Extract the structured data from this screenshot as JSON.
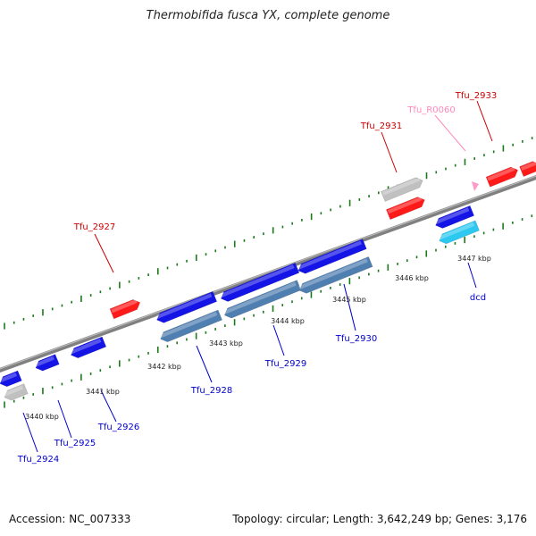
{
  "header": {
    "title": "Thermobifida fusca YX, complete genome"
  },
  "footer": {
    "accession": "Accession: NC_007333",
    "summary": "Topology: circular; Length: 3,642,249 bp; Genes: 3,176"
  },
  "colors": {
    "forward_cds": "#ff1a1a",
    "reverse_cds": "#1414e6",
    "forward_other": "#c0c0c0",
    "reverse_other": "#c0c0c0",
    "reverse_steel": "#4f7fb0",
    "reverse_cyan": "#2cc8f0",
    "rna": "#ff99cc",
    "backbone": "#808080",
    "ticks": "#1a7a1a",
    "label_forward": "#cc0000",
    "label_reverse": "#0000cc",
    "label_rna": "#ff88bb"
  },
  "kbp_labels": [
    "3440 kbp",
    "3441 kbp",
    "3442 kbp",
    "3443 kbp",
    "3444 kbp",
    "3445 kbp",
    "3446 kbp",
    "3447 kbp"
  ],
  "gene_labels": [
    {
      "text": "Tfu_2924",
      "strand": "reverse"
    },
    {
      "text": "Tfu_2925",
      "strand": "reverse"
    },
    {
      "text": "Tfu_2926",
      "strand": "reverse"
    },
    {
      "text": "Tfu_2927",
      "strand": "forward"
    },
    {
      "text": "Tfu_2928",
      "strand": "reverse"
    },
    {
      "text": "Tfu_2929",
      "strand": "reverse"
    },
    {
      "text": "Tfu_2930",
      "strand": "reverse"
    },
    {
      "text": "Tfu_2931",
      "strand": "forward"
    },
    {
      "text": "Tfu_R0060",
      "strand": "rna"
    },
    {
      "text": "Tfu_2933",
      "strand": "forward"
    },
    {
      "text": "dcd",
      "strand": "reverse"
    }
  ]
}
